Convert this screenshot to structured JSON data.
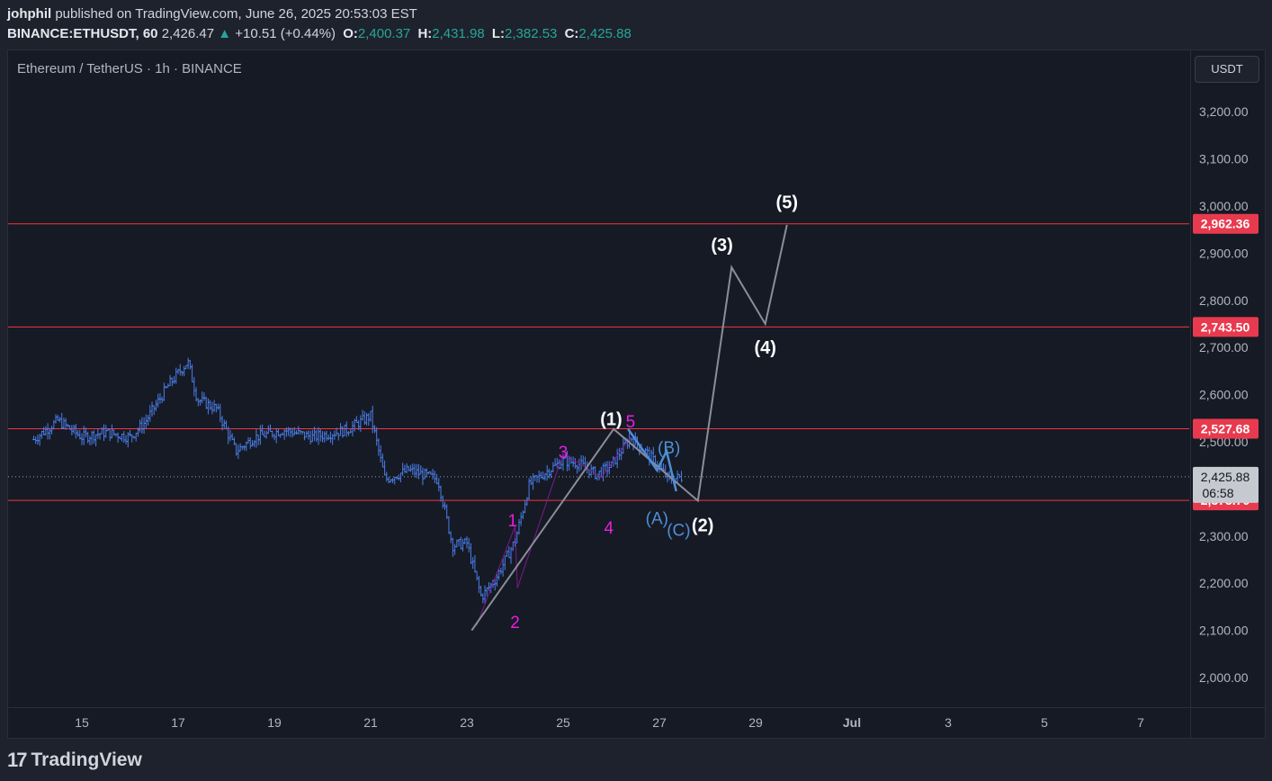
{
  "header": {
    "author": "johphil",
    "published_text": "published on TradingView.com, June 26, 2025 20:53:03 EST",
    "symbol": "BINANCE:ETHUSDT, 60",
    "last_price": "2,426.47",
    "change_arrow": "▲",
    "change": "+10.51 (+0.44%)",
    "open_label": "O:",
    "open": "2,400.37",
    "high_label": "H:",
    "high": "2,431.98",
    "low_label": "L:",
    "low": "2,382.53",
    "close_label": "C:",
    "close": "2,425.88"
  },
  "chart_title": "Ethereum / TetherUS · 1h · BINANCE",
  "currency_button": "USDT",
  "footer": {
    "logo_mark": "17",
    "logo_text": "TradingView"
  },
  "colors": {
    "up": "#26a69a",
    "candle": "#4a7ee8",
    "level_line": "#f23645",
    "label_bg": "#e83a4e",
    "wave_grey": "#8a8e99",
    "minor_wave": "#e91ee0",
    "correction": "#4d8fd6",
    "white_label": "#ffffff"
  },
  "chart_data": {
    "type": "candlestick",
    "y_axis_ticks": [
      2000,
      2100,
      2200,
      2300,
      2400,
      2500,
      2600,
      2700,
      2800,
      2900,
      3000,
      3100,
      3200
    ],
    "y_axis_labels": [
      "2,000.00",
      "2,100.00",
      "2,200.00",
      "2,300.00",
      "2,400.00",
      "2,500.00",
      "2,600.00",
      "2,700.00",
      "2,800.00",
      "2,900.00",
      "3,000.00",
      "3,100.00",
      "3,200.00"
    ],
    "x_axis_ticks": [
      {
        "t": 15,
        "label": "15"
      },
      {
        "t": 17,
        "label": "17"
      },
      {
        "t": 19,
        "label": "19"
      },
      {
        "t": 21,
        "label": "21"
      },
      {
        "t": 23,
        "label": "23"
      },
      {
        "t": 25,
        "label": "25"
      },
      {
        "t": 27,
        "label": "27"
      },
      {
        "t": 29,
        "label": "29"
      },
      {
        "t": 31,
        "label": "Jul"
      },
      {
        "t": 33,
        "label": "3"
      },
      {
        "t": 35,
        "label": "5"
      },
      {
        "t": 37,
        "label": "7"
      }
    ],
    "price_path": [
      [
        14.0,
        2505
      ],
      [
        14.5,
        2545
      ],
      [
        15.0,
        2510
      ],
      [
        15.5,
        2520
      ],
      [
        16.0,
        2510
      ],
      [
        16.3,
        2540
      ],
      [
        16.8,
        2620
      ],
      [
        17.2,
        2670
      ],
      [
        17.4,
        2590
      ],
      [
        17.8,
        2570
      ],
      [
        18.2,
        2480
      ],
      [
        18.6,
        2510
      ],
      [
        19.2,
        2525
      ],
      [
        19.8,
        2510
      ],
      [
        20.5,
        2525
      ],
      [
        21.0,
        2555
      ],
      [
        21.3,
        2420
      ],
      [
        21.8,
        2440
      ],
      [
        22.4,
        2420
      ],
      [
        22.7,
        2280
      ],
      [
        23.0,
        2285
      ],
      [
        23.3,
        2170
      ],
      [
        23.6,
        2210
      ],
      [
        24.0,
        2290
      ],
      [
        24.3,
        2410
      ],
      [
        24.7,
        2440
      ],
      [
        25.0,
        2460
      ],
      [
        25.3,
        2455
      ],
      [
        25.7,
        2430
      ],
      [
        26.0,
        2450
      ],
      [
        26.4,
        2510
      ],
      [
        26.8,
        2470
      ],
      [
        27.2,
        2420
      ],
      [
        27.5,
        2426
      ]
    ],
    "current_price": "2,425.88",
    "countdown": "06:58",
    "levels": [
      {
        "price": 2962.36,
        "label": "2,962.36"
      },
      {
        "price": 2743.5,
        "label": "2,743.50"
      },
      {
        "price": 2527.68,
        "label": "2,527.68"
      },
      {
        "price": 2375.7,
        "label": "2,375.70"
      }
    ],
    "primary_wave_path": [
      [
        23.1,
        2100
      ],
      [
        26.05,
        2527
      ],
      [
        27.8,
        2375
      ],
      [
        28.5,
        2870
      ],
      [
        29.2,
        2750
      ],
      [
        29.65,
        2960
      ]
    ],
    "wave_labels": [
      {
        "text": "(1)",
        "t": 26.0,
        "p": 2545,
        "color": "white"
      },
      {
        "text": "(2)",
        "t": 27.9,
        "p": 2320,
        "color": "white"
      },
      {
        "text": "(3)",
        "t": 28.3,
        "p": 2915,
        "color": "white"
      },
      {
        "text": "(4)",
        "t": 29.2,
        "p": 2697,
        "color": "white"
      },
      {
        "text": "(5)",
        "t": 29.65,
        "p": 3005,
        "color": "white"
      },
      {
        "text": "1",
        "t": 23.95,
        "p": 2330,
        "color": "minor"
      },
      {
        "text": "2",
        "t": 24.0,
        "p": 2115,
        "color": "minor"
      },
      {
        "text": "3",
        "t": 25.0,
        "p": 2475,
        "color": "minor"
      },
      {
        "text": "4",
        "t": 25.95,
        "p": 2315,
        "color": "minor"
      },
      {
        "text": "5",
        "t": 26.4,
        "p": 2540,
        "color": "minor"
      },
      {
        "text": "(A)",
        "t": 26.95,
        "p": 2335,
        "color": "correction"
      },
      {
        "text": "(B)",
        "t": 27.2,
        "p": 2485,
        "color": "correction"
      },
      {
        "text": "(C)",
        "t": 27.4,
        "p": 2310,
        "color": "correction"
      }
    ],
    "minor_wave_path": [
      [
        23.2,
        2110
      ],
      [
        24.0,
        2320
      ],
      [
        24.05,
        2190
      ],
      [
        25.0,
        2475
      ],
      [
        25.8,
        2425
      ],
      [
        26.4,
        2510
      ]
    ],
    "correction_path": [
      [
        26.35,
        2527
      ],
      [
        26.95,
        2440
      ],
      [
        27.15,
        2480
      ],
      [
        27.35,
        2395
      ]
    ]
  }
}
